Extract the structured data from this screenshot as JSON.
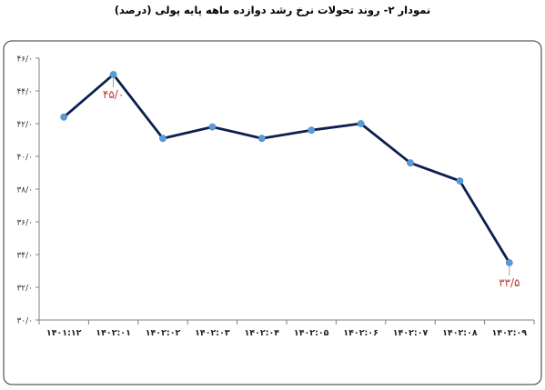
{
  "chart_data": {
    "type": "line",
    "title": "نمودار ۲- روند تحولات نرخ رشد دوازده ماهه پایه پولی (درصد)",
    "xlabel": "",
    "ylabel": "",
    "categories": [
      "۱۴۰۱:۱۲",
      "۱۴۰۲:۰۱",
      "۱۴۰۲:۰۲",
      "۱۴۰۲:۰۳",
      "۱۴۰۲:۰۴",
      "۱۴۰۲:۰۵",
      "۱۴۰۲:۰۶",
      "۱۴۰۲:۰۷",
      "۱۴۰۲:۰۸",
      "۱۴۰۲:۰۹"
    ],
    "values": [
      42.4,
      45.0,
      41.1,
      41.8,
      41.1,
      41.6,
      42.0,
      39.6,
      38.5,
      33.5
    ],
    "ylim": [
      30,
      46
    ],
    "yticks": [
      30,
      32,
      34,
      36,
      38,
      40,
      42,
      44,
      46
    ],
    "ytick_labels": [
      "۳۰/۰",
      "۳۲/۰",
      "۳۴/۰",
      "۳۶/۰",
      "۳۸/۰",
      "۴۰/۰",
      "۴۲/۰",
      "۴۴/۰",
      "۴۶/۰"
    ],
    "data_labels": [
      {
        "index": 1,
        "text": "۴۵/۰"
      },
      {
        "index": 9,
        "text": "۳۳/۵"
      }
    ],
    "grid": false,
    "colors": {
      "line": "#0d1f4f",
      "marker": "#5b9bd5",
      "data_label": "#c0392b",
      "axis": "#808080",
      "frame": "#333333"
    }
  }
}
